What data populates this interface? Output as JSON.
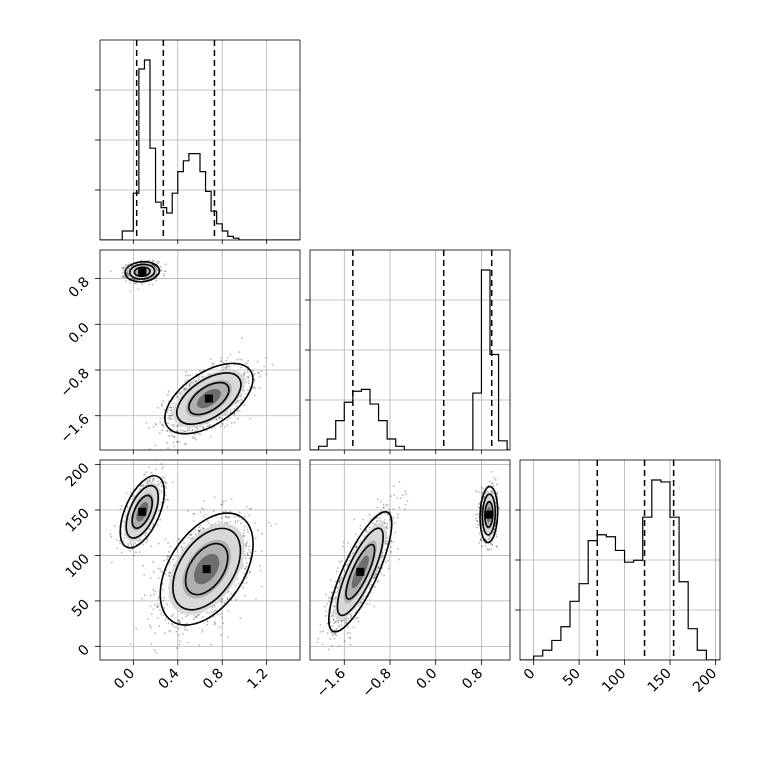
{
  "chart_data": {
    "type": "corner",
    "parameters": [
      {
        "range": [
          -0.3,
          1.5
        ],
        "ticks": [
          0.0,
          0.4,
          0.8,
          1.2
        ],
        "tick_labels": [
          "0.0",
          "0.4",
          "0.8",
          "1.2"
        ],
        "quantiles": [
          0.03,
          0.27,
          0.73
        ],
        "hist_bins": [
          -0.3,
          -0.2,
          -0.1,
          0.0,
          0.05,
          0.1,
          0.15,
          0.2,
          0.25,
          0.3,
          0.35,
          0.4,
          0.45,
          0.5,
          0.55,
          0.6,
          0.65,
          0.7,
          0.75,
          0.8,
          0.85,
          0.9,
          0.95,
          1.0,
          1.05,
          1.1,
          1.5
        ],
        "hist_values": [
          0,
          0,
          0.05,
          0.26,
          0.95,
          1.0,
          0.51,
          0.21,
          0.18,
          0.15,
          0.26,
          0.38,
          0.44,
          0.48,
          0.48,
          0.38,
          0.27,
          0.16,
          0.09,
          0.05,
          0.02,
          0.01,
          0,
          0,
          0,
          0
        ]
      },
      {
        "range": [
          -2.2,
          1.3
        ],
        "ticks": [
          -1.6,
          -0.8,
          0.0,
          0.8
        ],
        "tick_labels": [
          "−1.6",
          "−0.8",
          "0.0",
          "0.8"
        ],
        "quantiles": [
          -1.45,
          0.14,
          0.98
        ],
        "hist_bins": [
          -2.2,
          -2.05,
          -1.9,
          -1.75,
          -1.6,
          -1.45,
          -1.3,
          -1.15,
          -1.0,
          -0.85,
          -0.7,
          -0.55,
          -0.4,
          -0.25,
          -0.1,
          0.05,
          0.2,
          0.35,
          0.5,
          0.65,
          0.8,
          0.95,
          1.1,
          1.25,
          1.3
        ],
        "hist_values": [
          0,
          0.02,
          0.06,
          0.16,
          0.26,
          0.32,
          0.33,
          0.25,
          0.16,
          0.06,
          0.02,
          0,
          0,
          0,
          0,
          0,
          0,
          0,
          0,
          0.31,
          0.98,
          0.52,
          0.05,
          0
        ]
      },
      {
        "range": [
          -15,
          205
        ],
        "ticks": [
          0,
          50,
          100,
          150,
          200
        ],
        "tick_labels": [
          "0",
          "50",
          "100",
          "150",
          "200"
        ],
        "quantiles": [
          70,
          122,
          154
        ],
        "hist_bins": [
          -15,
          0,
          10,
          20,
          30,
          40,
          50,
          60,
          70,
          80,
          90,
          100,
          110,
          120,
          130,
          140,
          150,
          160,
          170,
          180,
          190,
          205
        ],
        "hist_values": [
          0,
          0.02,
          0.05,
          0.1,
          0.17,
          0.3,
          0.39,
          0.61,
          0.64,
          0.63,
          0.56,
          0.5,
          0.51,
          0.73,
          0.92,
          0.91,
          0.73,
          0.4,
          0.16,
          0.05,
          0
        ]
      }
    ],
    "pairs": [
      {
        "x_param": 0,
        "y_param": 1,
        "clusters": [
          {
            "n": 700,
            "cx": 0.08,
            "cy": 0.92,
            "sx": 0.07,
            "sy": 0.08,
            "rho": 0.1
          },
          {
            "n": 1500,
            "cx": 0.68,
            "cy": -1.3,
            "sx": 0.18,
            "sy": 0.28,
            "rho": 0.55
          }
        ]
      },
      {
        "x_param": 0,
        "y_param": 2,
        "clusters": [
          {
            "n": 700,
            "cx": 0.08,
            "cy": 148,
            "sx": 0.09,
            "sy": 18,
            "rho": 0.55
          },
          {
            "n": 1500,
            "cx": 0.66,
            "cy": 85,
            "sx": 0.19,
            "sy": 28,
            "rho": 0.45
          }
        ]
      },
      {
        "x_param": 1,
        "y_param": 2,
        "clusters": [
          {
            "n": 700,
            "cx": 0.93,
            "cy": 145,
            "sx": 0.07,
            "sy": 14,
            "rho": 0.1
          },
          {
            "n": 1500,
            "cx": -1.32,
            "cy": 82,
            "sx": 0.25,
            "sy": 30,
            "rho": 0.8
          }
        ]
      }
    ],
    "grid": true,
    "title": "",
    "xlabel": "",
    "ylabel": ""
  }
}
